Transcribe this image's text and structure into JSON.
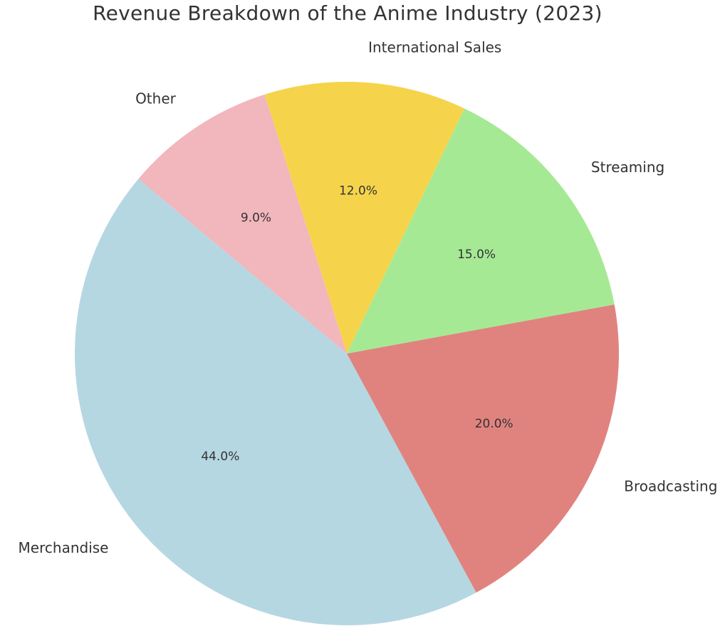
{
  "chart_data": {
    "type": "pie",
    "title": "Revenue Breakdown of the Anime Industry (2023)",
    "slices": [
      {
        "label": "Merchandise",
        "value": 44.0,
        "pct_label": "44.0%",
        "color": "#b5d7e2"
      },
      {
        "label": "Broadcasting",
        "value": 20.0,
        "pct_label": "20.0%",
        "color": "#e0837f"
      },
      {
        "label": "Streaming",
        "value": 15.0,
        "pct_label": "15.0%",
        "color": "#a6e995"
      },
      {
        "label": "International Sales",
        "value": 12.0,
        "pct_label": "12.0%",
        "color": "#f5d44b"
      },
      {
        "label": "Other",
        "value": 9.0,
        "pct_label": "9.0%",
        "color": "#f2b6bd"
      }
    ]
  }
}
